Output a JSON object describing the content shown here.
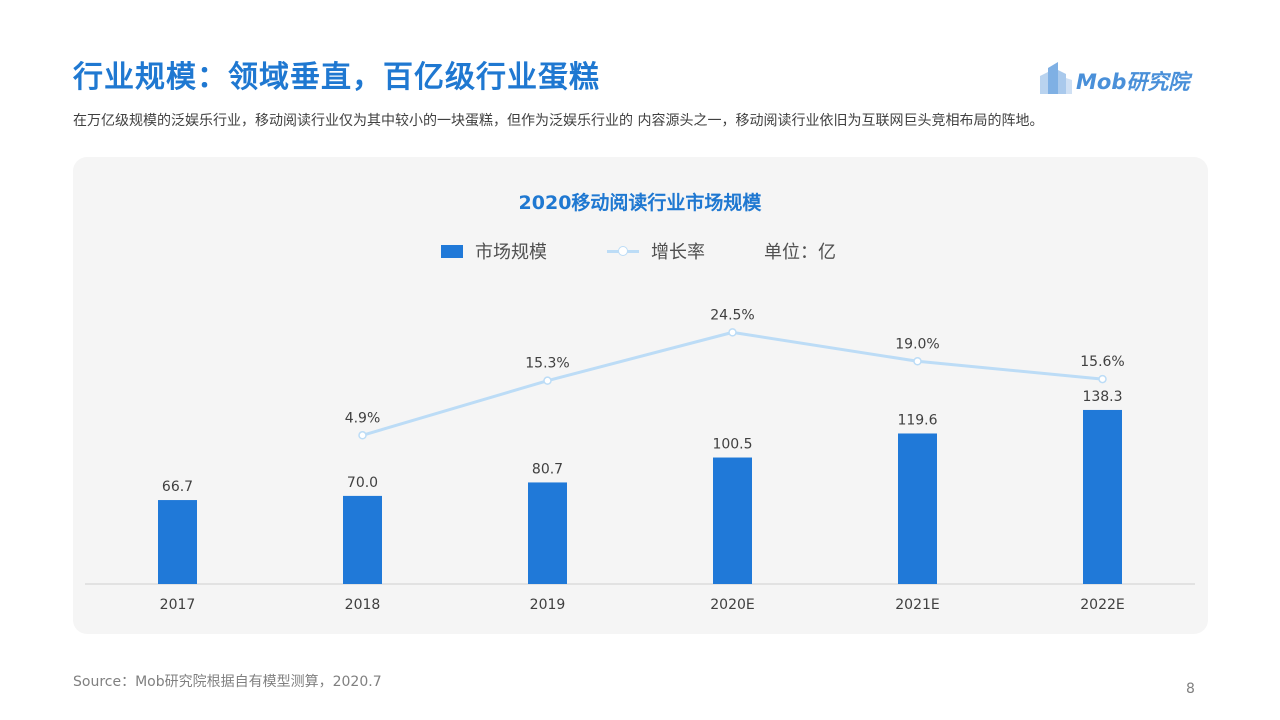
{
  "slide": {
    "title": "行业规模：领域垂直，百亿级行业蛋糕",
    "subtitle": "在万亿级规模的泛娱乐行业，移动阅读行业仅为其中较小的一块蛋糕，但作为泛娱乐行业的 内容源头之一，移动阅读行业依旧为互联网巨头竞相布局的阵地。",
    "logo_text": "Mob研究院",
    "source": "Source：Mob研究院根据自有模型测算，2020.7",
    "page_number": "8"
  },
  "colors": {
    "title": "#1f78d1",
    "bar": "#2079d8",
    "line": "#bcdcf6",
    "panel": "#f5f5f5"
  },
  "chart_data": {
    "type": "bar",
    "title": "2020移动阅读行业市场规模",
    "categories": [
      "2017",
      "2018",
      "2019",
      "2020E",
      "2021E",
      "2022E"
    ],
    "series": [
      {
        "name": "市场规模",
        "type": "bar",
        "values": [
          66.7,
          70.0,
          80.7,
          100.5,
          119.6,
          138.3
        ],
        "labels": [
          "66.7",
          "70.0",
          "80.7",
          "100.5",
          "119.6",
          "138.3"
        ]
      },
      {
        "name": "增长率",
        "type": "line",
        "values": [
          null,
          4.9,
          15.3,
          24.5,
          19.0,
          15.6
        ],
        "labels": [
          "",
          "4.9%",
          "15.3%",
          "24.5%",
          "19.0%",
          "15.6%"
        ]
      }
    ],
    "unit_note": "单位：亿",
    "legend_position": "top",
    "grid": false
  }
}
